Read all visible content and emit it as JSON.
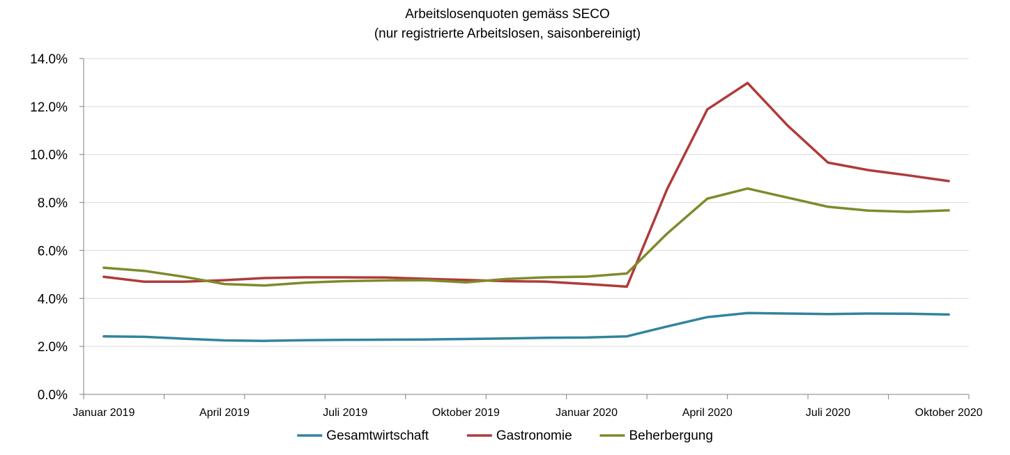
{
  "chart_data": {
    "type": "line",
    "title": "Arbeitslosenquoten gemäss SECO",
    "subtitle": "(nur registrierte Arbeitslosen, saisonbereinigt)",
    "xlabel": "",
    "ylabel": "",
    "ylim": [
      0,
      14
    ],
    "yticks": [
      0,
      2,
      4,
      6,
      8,
      10,
      12,
      14
    ],
    "ytick_labels": [
      "0.0%",
      "2.0%",
      "4.0%",
      "6.0%",
      "8.0%",
      "10.0%",
      "12.0%",
      "14.0%"
    ],
    "months": [
      "2019-01",
      "2019-02",
      "2019-03",
      "2019-04",
      "2019-05",
      "2019-06",
      "2019-07",
      "2019-08",
      "2019-09",
      "2019-10",
      "2019-11",
      "2019-12",
      "2020-01",
      "2020-02",
      "2020-03",
      "2020-04",
      "2020-05",
      "2020-06",
      "2020-07",
      "2020-08",
      "2020-09",
      "2020-10"
    ],
    "x_tick_labels": [
      {
        "index": 0,
        "label": "Januar 2019"
      },
      {
        "index": 3,
        "label": "April 2019"
      },
      {
        "index": 6,
        "label": "Juli 2019"
      },
      {
        "index": 9,
        "label": "Oktober 2019"
      },
      {
        "index": 12,
        "label": "Januar 2020"
      },
      {
        "index": 15,
        "label": "April 2020"
      },
      {
        "index": 18,
        "label": "Juli 2020"
      },
      {
        "index": 21,
        "label": "Oktober 2020"
      }
    ],
    "grid": true,
    "legend_position": "bottom",
    "series": [
      {
        "name": "Gesamtwirtschaft",
        "color": "#31849b",
        "values": [
          2.42,
          2.4,
          2.32,
          2.25,
          2.23,
          2.26,
          2.27,
          2.28,
          2.29,
          2.31,
          2.33,
          2.36,
          2.37,
          2.42,
          2.83,
          3.22,
          3.39,
          3.37,
          3.35,
          3.37,
          3.36,
          3.33
        ]
      },
      {
        "name": "Gastronomie",
        "color": "#b03a3a",
        "values": [
          4.9,
          4.7,
          4.7,
          4.76,
          4.85,
          4.88,
          4.88,
          4.87,
          4.82,
          4.77,
          4.72,
          4.7,
          4.6,
          4.49,
          8.55,
          11.88,
          12.98,
          11.2,
          9.66,
          9.35,
          9.13,
          8.89
        ]
      },
      {
        "name": "Beherbergung",
        "color": "#7f8a2a",
        "values": [
          5.28,
          5.15,
          4.9,
          4.6,
          4.54,
          4.66,
          4.72,
          4.75,
          4.76,
          4.67,
          4.81,
          4.88,
          4.91,
          5.04,
          6.7,
          8.16,
          8.58,
          8.2,
          7.82,
          7.66,
          7.61,
          7.67
        ]
      }
    ]
  }
}
